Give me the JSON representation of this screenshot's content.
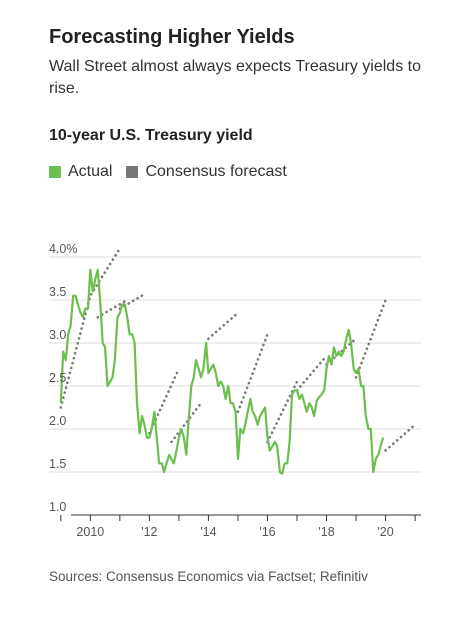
{
  "title": "Forecasting Higher Yields",
  "subtitle": "Wall Street almost always expects Treasury yields to rise.",
  "source": "Sources: Consensus Economics via Factset; Refinitiv",
  "colors": {
    "actual": "#6bbf4e",
    "forecast": "#777777",
    "grid": "#dddddd",
    "axis": "#333333"
  },
  "chart_data": {
    "type": "line",
    "title": "10-year U.S. Treasury yield",
    "ylim": [
      1.0,
      4.0
    ],
    "xlim": [
      2008.6,
      2021.2
    ],
    "y_ticks": [
      {
        "value": 4.0,
        "label": "4.0%"
      },
      {
        "value": 3.5,
        "label": "3.5"
      },
      {
        "value": 3.0,
        "label": "3.0"
      },
      {
        "value": 2.5,
        "label": "2.5"
      },
      {
        "value": 2.0,
        "label": "2.0"
      },
      {
        "value": 1.5,
        "label": "1.5"
      },
      {
        "value": 1.0,
        "label": "1.0"
      }
    ],
    "x_ticks": [
      {
        "value": 2010,
        "label": "2010"
      },
      {
        "value": 2012,
        "label": "'12"
      },
      {
        "value": 2014,
        "label": "'14"
      },
      {
        "value": 2016,
        "label": "'16"
      },
      {
        "value": 2018,
        "label": "'18"
      },
      {
        "value": 2020,
        "label": "'20"
      }
    ],
    "legend": [
      {
        "name": "Actual",
        "color": "#6bbf4e"
      },
      {
        "name": "Consensus forecast",
        "color": "#777777"
      }
    ],
    "series": [
      {
        "name": "Actual",
        "style": "solid",
        "points": [
          [
            2009.0,
            2.3
          ],
          [
            2009.08,
            2.9
          ],
          [
            2009.17,
            2.8
          ],
          [
            2009.25,
            3.1
          ],
          [
            2009.33,
            3.2
          ],
          [
            2009.42,
            3.55
          ],
          [
            2009.5,
            3.55
          ],
          [
            2009.58,
            3.45
          ],
          [
            2009.67,
            3.35
          ],
          [
            2009.75,
            3.3
          ],
          [
            2009.83,
            3.4
          ],
          [
            2009.92,
            3.4
          ],
          [
            2010.0,
            3.85
          ],
          [
            2010.08,
            3.6
          ],
          [
            2010.17,
            3.75
          ],
          [
            2010.25,
            3.85
          ],
          [
            2010.33,
            3.5
          ],
          [
            2010.42,
            3.0
          ],
          [
            2010.5,
            2.95
          ],
          [
            2010.58,
            2.5
          ],
          [
            2010.67,
            2.55
          ],
          [
            2010.75,
            2.6
          ],
          [
            2010.83,
            2.8
          ],
          [
            2010.92,
            3.3
          ],
          [
            2011.0,
            3.35
          ],
          [
            2011.08,
            3.45
          ],
          [
            2011.17,
            3.45
          ],
          [
            2011.25,
            3.3
          ],
          [
            2011.33,
            3.1
          ],
          [
            2011.42,
            3.1
          ],
          [
            2011.5,
            3.0
          ],
          [
            2011.58,
            2.3
          ],
          [
            2011.67,
            1.95
          ],
          [
            2011.75,
            2.15
          ],
          [
            2011.83,
            2.05
          ],
          [
            2011.92,
            1.9
          ],
          [
            2012.0,
            1.9
          ],
          [
            2012.08,
            2.0
          ],
          [
            2012.17,
            2.2
          ],
          [
            2012.25,
            1.9
          ],
          [
            2012.33,
            1.6
          ],
          [
            2012.42,
            1.6
          ],
          [
            2012.5,
            1.5
          ],
          [
            2012.58,
            1.6
          ],
          [
            2012.67,
            1.7
          ],
          [
            2012.75,
            1.65
          ],
          [
            2012.83,
            1.6
          ],
          [
            2012.92,
            1.75
          ],
          [
            2013.0,
            1.9
          ],
          [
            2013.08,
            2.0
          ],
          [
            2013.17,
            1.9
          ],
          [
            2013.25,
            1.7
          ],
          [
            2013.33,
            2.1
          ],
          [
            2013.42,
            2.5
          ],
          [
            2013.5,
            2.6
          ],
          [
            2013.58,
            2.8
          ],
          [
            2013.67,
            2.7
          ],
          [
            2013.75,
            2.6
          ],
          [
            2013.83,
            2.7
          ],
          [
            2013.92,
            3.0
          ],
          [
            2014.0,
            2.65
          ],
          [
            2014.08,
            2.7
          ],
          [
            2014.17,
            2.75
          ],
          [
            2014.25,
            2.65
          ],
          [
            2014.33,
            2.5
          ],
          [
            2014.42,
            2.55
          ],
          [
            2014.5,
            2.5
          ],
          [
            2014.58,
            2.35
          ],
          [
            2014.67,
            2.5
          ],
          [
            2014.75,
            2.3
          ],
          [
            2014.83,
            2.3
          ],
          [
            2014.92,
            2.2
          ],
          [
            2015.0,
            1.65
          ],
          [
            2015.08,
            2.0
          ],
          [
            2015.17,
            1.95
          ],
          [
            2015.25,
            2.05
          ],
          [
            2015.33,
            2.2
          ],
          [
            2015.42,
            2.35
          ],
          [
            2015.5,
            2.2
          ],
          [
            2015.58,
            2.15
          ],
          [
            2015.67,
            2.05
          ],
          [
            2015.75,
            2.15
          ],
          [
            2015.83,
            2.2
          ],
          [
            2015.92,
            2.25
          ],
          [
            2016.0,
            1.9
          ],
          [
            2016.08,
            1.75
          ],
          [
            2016.17,
            1.8
          ],
          [
            2016.25,
            1.85
          ],
          [
            2016.33,
            1.8
          ],
          [
            2016.42,
            1.5
          ],
          [
            2016.5,
            1.48
          ],
          [
            2016.58,
            1.6
          ],
          [
            2016.67,
            1.6
          ],
          [
            2016.75,
            1.85
          ],
          [
            2016.83,
            2.4
          ],
          [
            2016.92,
            2.45
          ],
          [
            2017.0,
            2.45
          ],
          [
            2017.08,
            2.35
          ],
          [
            2017.17,
            2.4
          ],
          [
            2017.25,
            2.3
          ],
          [
            2017.33,
            2.2
          ],
          [
            2017.42,
            2.3
          ],
          [
            2017.5,
            2.25
          ],
          [
            2017.58,
            2.15
          ],
          [
            2017.67,
            2.33
          ],
          [
            2017.75,
            2.37
          ],
          [
            2017.83,
            2.4
          ],
          [
            2017.92,
            2.45
          ],
          [
            2018.0,
            2.7
          ],
          [
            2018.08,
            2.85
          ],
          [
            2018.17,
            2.75
          ],
          [
            2018.25,
            2.95
          ],
          [
            2018.33,
            2.85
          ],
          [
            2018.42,
            2.9
          ],
          [
            2018.5,
            2.85
          ],
          [
            2018.58,
            2.9
          ],
          [
            2018.67,
            3.05
          ],
          [
            2018.75,
            3.15
          ],
          [
            2018.83,
            3.0
          ],
          [
            2018.92,
            2.7
          ],
          [
            2019.0,
            2.65
          ],
          [
            2019.08,
            2.7
          ],
          [
            2019.17,
            2.5
          ],
          [
            2019.25,
            2.5
          ],
          [
            2019.33,
            2.15
          ],
          [
            2019.42,
            2.0
          ],
          [
            2019.5,
            2.0
          ],
          [
            2019.58,
            1.5
          ],
          [
            2019.67,
            1.65
          ],
          [
            2019.75,
            1.7
          ],
          [
            2019.83,
            1.8
          ],
          [
            2019.92,
            1.9
          ]
        ]
      },
      {
        "name": "Consensus forecast",
        "style": "dotted",
        "segments": [
          [
            [
              2009.0,
              2.25
            ],
            [
              2010.0,
              3.55
            ],
            [
              2011.0,
              4.1
            ]
          ],
          [
            [
              2010.25,
              3.3
            ],
            [
              2011.25,
              3.5
            ]
          ],
          [
            [
              2011.0,
              3.4
            ],
            [
              2011.75,
              3.55
            ]
          ],
          [
            [
              2012.0,
              1.95
            ],
            [
              2013.0,
              2.7
            ]
          ],
          [
            [
              2012.75,
              1.85
            ],
            [
              2013.75,
              2.3
            ]
          ],
          [
            [
              2014.0,
              3.05
            ],
            [
              2015.0,
              3.35
            ]
          ],
          [
            [
              2015.0,
              2.2
            ],
            [
              2016.0,
              3.1
            ]
          ],
          [
            [
              2016.0,
              1.85
            ],
            [
              2017.0,
              2.55
            ]
          ],
          [
            [
              2017.0,
              2.45
            ],
            [
              2018.0,
              2.85
            ]
          ],
          [
            [
              2018.0,
              2.75
            ],
            [
              2019.0,
              3.05
            ]
          ],
          [
            [
              2019.0,
              2.6
            ],
            [
              2020.0,
              3.5
            ]
          ],
          [
            [
              2020.0,
              1.75
            ],
            [
              2021.0,
              2.05
            ]
          ]
        ]
      }
    ]
  }
}
